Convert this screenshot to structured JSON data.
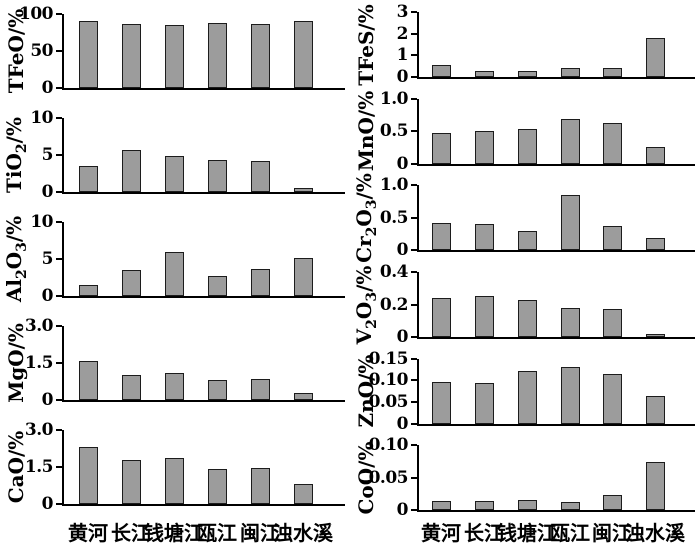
{
  "figure": {
    "title": "",
    "categories": [
      "黄河",
      "长江",
      "钱塘江",
      "瓯江",
      "闽江",
      "浊水溪"
    ],
    "colors": {
      "bar_fill": "#9c9c9c",
      "bar_border": "#1c1c1c",
      "axis": "#000000",
      "text": "#000000",
      "background": "#ffffff"
    }
  },
  "chart_data": [
    {
      "type": "bar",
      "column": "left",
      "ylabel": "TFeO/%",
      "ylim": [
        0,
        100
      ],
      "ytick_labels": [
        "0",
        "50",
        "100"
      ],
      "grid": false,
      "categories": [
        "黄河",
        "长江",
        "钱塘江",
        "瓯江",
        "闽江",
        "浊水溪"
      ],
      "values": [
        90,
        86,
        85,
        88,
        86,
        91
      ]
    },
    {
      "type": "bar",
      "column": "left",
      "ylabel": "TiO₂/%",
      "ylim": [
        0,
        10
      ],
      "ytick_labels": [
        "0",
        "5",
        "10"
      ],
      "grid": false,
      "categories": [
        "黄河",
        "长江",
        "钱塘江",
        "瓯江",
        "闽江",
        "浊水溪"
      ],
      "values": [
        3.5,
        5.7,
        4.9,
        4.3,
        4.2,
        0.5
      ]
    },
    {
      "type": "bar",
      "column": "left",
      "ylabel": "Al₂O₃/%",
      "ylim": [
        0,
        10
      ],
      "ytick_labels": [
        "0",
        "5",
        "10"
      ],
      "grid": false,
      "categories": [
        "黄河",
        "长江",
        "钱塘江",
        "瓯江",
        "闽江",
        "浊水溪"
      ],
      "values": [
        1.5,
        3.5,
        6.0,
        2.7,
        3.7,
        5.2
      ]
    },
    {
      "type": "bar",
      "column": "left",
      "ylabel": "MgO/%",
      "ylim": [
        0,
        3.0
      ],
      "ytick_labels": [
        "0",
        "1.5",
        "3.0"
      ],
      "grid": false,
      "categories": [
        "黄河",
        "长江",
        "钱塘江",
        "瓯江",
        "闽江",
        "浊水溪"
      ],
      "values": [
        1.6,
        1.0,
        1.1,
        0.8,
        0.85,
        0.3
      ]
    },
    {
      "type": "bar",
      "column": "left",
      "ylabel": "CaO/%",
      "ylim": [
        0,
        3.0
      ],
      "ytick_labels": [
        "0",
        "1.5",
        "3.0"
      ],
      "grid": false,
      "categories": [
        "黄河",
        "长江",
        "钱塘江",
        "瓯江",
        "闽江",
        "浊水溪"
      ],
      "values": [
        2.3,
        1.8,
        1.85,
        1.4,
        1.45,
        0.8
      ]
    },
    {
      "type": "bar",
      "column": "right",
      "ylabel": "TFeS/%",
      "ylim": [
        0,
        3
      ],
      "ytick_labels": [
        "0",
        "1",
        "2",
        "3"
      ],
      "grid": false,
      "categories": [
        "黄河",
        "长江",
        "钱塘江",
        "瓯江",
        "闽江",
        "浊水溪"
      ],
      "values": [
        0.55,
        0.3,
        0.28,
        0.4,
        0.4,
        1.8
      ]
    },
    {
      "type": "bar",
      "column": "right",
      "ylabel": "MnO/%",
      "ylim": [
        0,
        1.0
      ],
      "ytick_labels": [
        "0",
        "0.5",
        "1.0"
      ],
      "grid": false,
      "categories": [
        "黄河",
        "长江",
        "钱塘江",
        "瓯江",
        "闽江",
        "浊水溪"
      ],
      "values": [
        0.47,
        0.5,
        0.54,
        0.68,
        0.63,
        0.25
      ]
    },
    {
      "type": "bar",
      "column": "right",
      "ylabel": "Cr₂O₃/%",
      "ylim": [
        0,
        1.0
      ],
      "ytick_labels": [
        "0",
        "0.5",
        "1.0"
      ],
      "grid": false,
      "categories": [
        "黄河",
        "长江",
        "钱塘江",
        "瓯江",
        "闽江",
        "浊水溪"
      ],
      "values": [
        0.42,
        0.41,
        0.29,
        0.85,
        0.37,
        0.19
      ]
    },
    {
      "type": "bar",
      "column": "right",
      "ylabel": "V₂O₃/%",
      "ylim": [
        0,
        0.4
      ],
      "ytick_labels": [
        "0",
        "0.2",
        "0.4"
      ],
      "grid": false,
      "categories": [
        "黄河",
        "长江",
        "钱塘江",
        "瓯江",
        "闽江",
        "浊水溪"
      ],
      "values": [
        0.24,
        0.25,
        0.23,
        0.18,
        0.17,
        0.02
      ]
    },
    {
      "type": "bar",
      "column": "right",
      "ylabel": "ZnO/%",
      "ylim": [
        0,
        0.15
      ],
      "ytick_labels": [
        "0",
        "0.05",
        "0.10",
        "0.15"
      ],
      "grid": false,
      "categories": [
        "黄河",
        "长江",
        "钱塘江",
        "瓯江",
        "闽江",
        "浊水溪"
      ],
      "values": [
        0.097,
        0.094,
        0.122,
        0.131,
        0.114,
        0.063
      ]
    },
    {
      "type": "bar",
      "column": "right",
      "ylabel": "CoO/%",
      "ylim": [
        0,
        0.1
      ],
      "ytick_labels": [
        "0",
        "0.05",
        "0.10"
      ],
      "grid": false,
      "categories": [
        "黄河",
        "长江",
        "钱塘江",
        "瓯江",
        "闽江",
        "浊水溪"
      ],
      "values": [
        0.015,
        0.014,
        0.016,
        0.013,
        0.023,
        0.075
      ]
    }
  ]
}
